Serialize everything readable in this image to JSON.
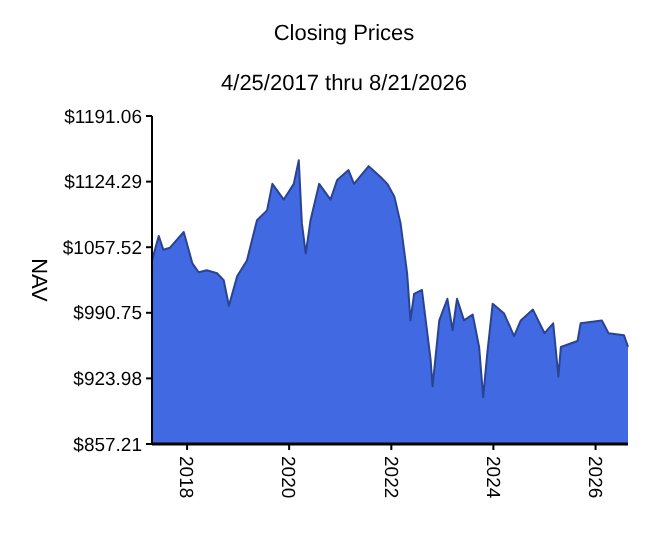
{
  "chart_data": {
    "type": "area",
    "title": "Closing Prices",
    "subtitle": "4/25/2017 thru 8/21/2026",
    "ylabel": "NAV",
    "xlim": [
      "2017-04-25",
      "2026-08-21"
    ],
    "xticks": [
      {
        "value": "2018-01-01",
        "label": "2018"
      },
      {
        "value": "2020-01-01",
        "label": "2020"
      },
      {
        "value": "2022-01-01",
        "label": "2022"
      },
      {
        "value": "2024-01-01",
        "label": "2024"
      },
      {
        "value": "2026-01-01",
        "label": "2026"
      }
    ],
    "ylim": [
      857.21,
      1191.06
    ],
    "yticks": [
      {
        "value": 857.21,
        "label": "$857.21"
      },
      {
        "value": 923.98,
        "label": "$923.98"
      },
      {
        "value": 990.75,
        "label": "$990.75"
      },
      {
        "value": 1057.52,
        "label": "$1057.52"
      },
      {
        "value": 1124.29,
        "label": "$1124.29"
      },
      {
        "value": 1191.06,
        "label": "$1191.06"
      }
    ],
    "grid": false,
    "x": [
      "2017-04-25",
      "2017-06-12",
      "2017-07-15",
      "2017-09-01",
      "2017-12-08",
      "2018-02-08",
      "2018-03-25",
      "2018-05-22",
      "2018-08-03",
      "2018-09-20",
      "2018-10-27",
      "2018-12-25",
      "2019-03-05",
      "2019-05-16",
      "2019-07-27",
      "2019-09-03",
      "2019-11-24",
      "2020-02-03",
      "2020-03-10",
      "2020-04-01",
      "2020-04-29",
      "2020-06-02",
      "2020-08-03",
      "2020-10-23",
      "2020-12-10",
      "2021-03-01",
      "2021-04-09",
      "2021-07-23",
      "2021-10-16",
      "2021-12-03",
      "2022-01-23",
      "2022-03-08",
      "2022-04-24",
      "2022-05-18",
      "2022-06-13",
      "2022-08-08",
      "2022-10-09",
      "2022-10-23",
      "2022-12-10",
      "2023-02-06",
      "2023-03-15",
      "2023-04-16",
      "2023-06-05",
      "2023-08-06",
      "2023-09-21",
      "2023-10-20",
      "2023-11-18",
      "2023-12-27",
      "2024-03-18",
      "2024-05-28",
      "2024-07-15",
      "2024-10-10",
      "2025-01-01",
      "2025-03-04",
      "2025-04-10",
      "2025-04-28",
      "2025-08-25",
      "2025-09-16",
      "2026-02-15",
      "2026-04-04",
      "2026-07-23",
      "2026-08-21"
    ],
    "series": [
      {
        "color": "#4169e1",
        "values": [
          1044,
          1069,
          1055,
          1057,
          1073,
          1041,
          1032,
          1034,
          1031,
          1024,
          998,
          1028,
          1044,
          1085,
          1095,
          1122,
          1106,
          1122,
          1146,
          1082,
          1051,
          1085,
          1122,
          1106,
          1126,
          1136,
          1122,
          1140,
          1129,
          1122,
          1109,
          1082,
          1031,
          983,
          1010,
          1014,
          943,
          916,
          983,
          1005,
          973,
          1005,
          983,
          989,
          956,
          905,
          949,
          1000,
          990,
          967,
          983,
          994,
          970,
          980,
          926,
          956,
          962,
          980,
          983,
          970,
          968,
          956
        ]
      }
    ]
  }
}
